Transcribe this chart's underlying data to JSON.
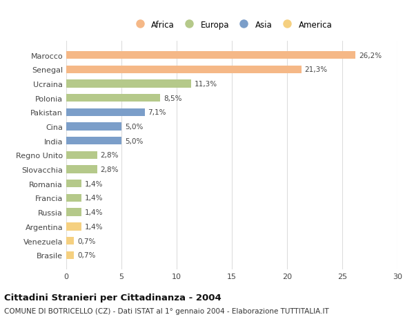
{
  "categories": [
    "Brasile",
    "Venezuela",
    "Argentina",
    "Russia",
    "Francia",
    "Romania",
    "Slovacchia",
    "Regno Unito",
    "India",
    "Cina",
    "Pakistan",
    "Polonia",
    "Ucraina",
    "Senegal",
    "Marocco"
  ],
  "values": [
    0.7,
    0.7,
    1.4,
    1.4,
    1.4,
    1.4,
    2.8,
    2.8,
    5.0,
    5.0,
    7.1,
    8.5,
    11.3,
    21.3,
    26.2
  ],
  "continents": [
    "America",
    "America",
    "America",
    "Europa",
    "Europa",
    "Europa",
    "Europa",
    "Europa",
    "Asia",
    "Asia",
    "Asia",
    "Europa",
    "Europa",
    "Africa",
    "Africa"
  ],
  "colors": {
    "Africa": "#F5B887",
    "Europa": "#B5C98A",
    "Asia": "#7B9EC9",
    "America": "#F5D080"
  },
  "legend_order": [
    "Africa",
    "Europa",
    "Asia",
    "America"
  ],
  "title": "Cittadini Stranieri per Cittadinanza - 2004",
  "subtitle": "COMUNE DI BOTRICELLO (CZ) - Dati ISTAT al 1° gennaio 2004 - Elaborazione TUTTITALIA.IT",
  "xlim": [
    0,
    30
  ],
  "xticks": [
    0,
    5,
    10,
    15,
    20,
    25,
    30
  ],
  "background_color": "#ffffff",
  "grid_color": "#dddddd",
  "bar_height": 0.55,
  "label_fontsize": 7.5,
  "tick_fontsize": 8,
  "title_fontsize": 9.5,
  "subtitle_fontsize": 7.5
}
